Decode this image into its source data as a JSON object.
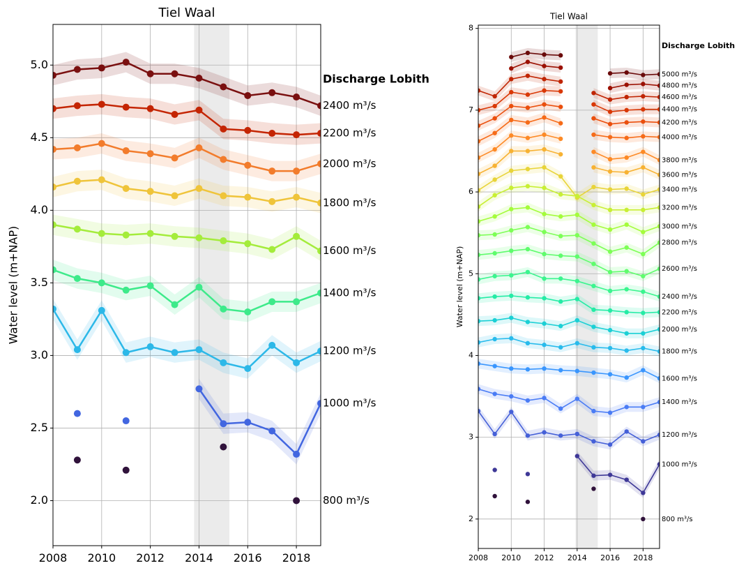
{
  "chart_data": [
    {
      "type": "line",
      "title": "Tiel Waal",
      "ylabel": "Water level (m+NAP)",
      "legend_title": "Discharge Lobith",
      "xlim": [
        2008,
        2019
      ],
      "ylim": [
        1.69,
        5.28
      ],
      "xticks": [
        2008,
        2010,
        2012,
        2014,
        2016,
        2018
      ],
      "yticks": [
        {
          "value": 2,
          "label": "2.0"
        },
        {
          "value": 2.5,
          "label": "2.5"
        },
        {
          "value": 3,
          "label": "3.0"
        },
        {
          "value": 3.5,
          "label": "3.5"
        },
        {
          "value": 4,
          "label": "4.0"
        },
        {
          "value": 4.5,
          "label": "4.5"
        },
        {
          "value": 5,
          "label": "5.0"
        }
      ],
      "grid": true,
      "highlight_span": [
        2013.8,
        2015.25
      ],
      "band_halfwidth": 0.07,
      "x": [
        2008,
        2009,
        2010,
        2011,
        2012,
        2013,
        2014,
        2015,
        2016,
        2017,
        2018,
        2019
      ],
      "series": [
        {
          "name": "2400 m³/s",
          "color": "#7a1010",
          "values": [
            4.93,
            4.97,
            4.98,
            5.02,
            4.94,
            4.94,
            4.91,
            4.85,
            4.79,
            4.81,
            4.78,
            4.72
          ]
        },
        {
          "name": "2200 m³/s",
          "color": "#c42503",
          "values": [
            4.7,
            4.72,
            4.73,
            4.71,
            4.7,
            4.66,
            4.69,
            4.56,
            4.55,
            4.53,
            4.52,
            4.53
          ]
        },
        {
          "name": "2000 m³/s",
          "color": "#f27c2c",
          "values": [
            4.42,
            4.43,
            4.46,
            4.41,
            4.39,
            4.36,
            4.43,
            4.35,
            4.31,
            4.27,
            4.27,
            4.32
          ]
        },
        {
          "name": "1800 m³/s",
          "color": "#efc43a",
          "values": [
            4.16,
            4.2,
            4.21,
            4.15,
            4.13,
            4.1,
            4.15,
            4.1,
            4.09,
            4.06,
            4.09,
            4.05
          ]
        },
        {
          "name": "1600 m³/s",
          "color": "#a4ec3b",
          "values": [
            3.9,
            3.87,
            3.84,
            3.83,
            3.84,
            3.82,
            3.81,
            3.79,
            3.77,
            3.73,
            3.82,
            3.72
          ]
        },
        {
          "name": "1400 m³/s",
          "color": "#3dea8a",
          "values": [
            3.59,
            3.53,
            3.5,
            3.45,
            3.48,
            3.35,
            3.47,
            3.32,
            3.3,
            3.37,
            3.37,
            3.43
          ]
        },
        {
          "name": "1200 m³/s",
          "color": "#2cb8e8",
          "values": [
            3.32,
            3.04,
            3.31,
            3.02,
            3.06,
            3.02,
            3.04,
            2.95,
            2.91,
            3.07,
            2.95,
            3.03
          ]
        },
        {
          "name": "1000 m³/s",
          "color": "#4266e0",
          "values": [
            null,
            2.6,
            null,
            2.55,
            null,
            null,
            2.77,
            2.53,
            2.54,
            2.48,
            2.32,
            2.67
          ]
        },
        {
          "name": "800 m³/s",
          "color": "#30123b",
          "values": [
            null,
            2.28,
            null,
            2.21,
            null,
            null,
            null,
            2.37,
            null,
            null,
            2.0,
            null
          ]
        }
      ]
    },
    {
      "type": "line",
      "title": "Tiel Waal",
      "ylabel": "Water level (m+NAP)",
      "legend_title": "Discharge Lobith",
      "xlim": [
        2008,
        2019
      ],
      "ylim": [
        1.64,
        8.04
      ],
      "xticks": [
        2008,
        2010,
        2012,
        2014,
        2016,
        2018
      ],
      "yticks": [
        2,
        3,
        4,
        5,
        6,
        7,
        8
      ],
      "grid": true,
      "highlight_span": [
        2013.9,
        2015.25
      ],
      "band_halfwidth": 0.06,
      "x": [
        2008,
        2009,
        2010,
        2011,
        2012,
        2013,
        2014,
        2015,
        2016,
        2017,
        2018,
        2019
      ],
      "series": [
        {
          "name": "5000 m³/s",
          "color": "#6a0a0a",
          "values": [
            null,
            null,
            7.65,
            7.7,
            7.68,
            7.67,
            null,
            null,
            7.45,
            7.46,
            7.43,
            7.44
          ]
        },
        {
          "name": "4800 m³/s",
          "color": "#9b1002",
          "values": [
            null,
            null,
            7.51,
            7.59,
            7.54,
            7.52,
            null,
            null,
            7.27,
            7.31,
            7.32,
            7.3
          ]
        },
        {
          "name": "4600 m³/s",
          "color": "#c02503",
          "values": [
            7.24,
            7.17,
            7.38,
            7.42,
            7.38,
            7.35,
            null,
            7.21,
            7.13,
            7.16,
            7.17,
            7.16
          ]
        },
        {
          "name": "4400 m³/s",
          "color": "#d93806",
          "values": [
            7.0,
            7.05,
            7.22,
            7.19,
            7.24,
            7.23,
            null,
            7.07,
            6.98,
            7.0,
            7.01,
            7.01
          ]
        },
        {
          "name": "4200 m³/s",
          "color": "#ea4f0d",
          "values": [
            6.81,
            6.9,
            7.05,
            7.03,
            7.07,
            7.04,
            null,
            6.9,
            6.83,
            6.85,
            6.86,
            6.85
          ]
        },
        {
          "name": "4000 m³/s",
          "color": "#f66b18",
          "values": [
            6.62,
            6.72,
            6.88,
            6.85,
            6.91,
            6.84,
            null,
            6.7,
            6.67,
            6.66,
            6.68,
            6.67
          ]
        },
        {
          "name": "3800 m³/s",
          "color": "#fd8a26",
          "values": [
            6.42,
            6.52,
            6.69,
            6.66,
            6.7,
            6.65,
            null,
            6.49,
            6.4,
            6.42,
            6.49,
            6.39
          ]
        },
        {
          "name": "3600 m³/s",
          "color": "#f7b233",
          "values": [
            6.22,
            6.32,
            6.5,
            6.5,
            6.52,
            6.46,
            null,
            6.3,
            6.25,
            6.24,
            6.3,
            6.21
          ]
        },
        {
          "name": "3400 m³/s",
          "color": "#e8d439",
          "values": [
            6.02,
            6.15,
            6.26,
            6.28,
            6.3,
            6.19,
            5.93,
            6.06,
            6.03,
            6.04,
            5.97,
            6.03
          ]
        },
        {
          "name": "3200 m³/s",
          "color": "#c8ef34",
          "values": [
            5.82,
            5.96,
            6.05,
            6.07,
            6.05,
            5.97,
            5.95,
            5.84,
            5.78,
            5.78,
            5.78,
            5.81
          ]
        },
        {
          "name": "3000 m³/s",
          "color": "#a4fc3b",
          "values": [
            5.64,
            5.7,
            5.79,
            5.81,
            5.73,
            5.7,
            5.72,
            5.6,
            5.54,
            5.6,
            5.51,
            5.58
          ]
        },
        {
          "name": "2800 m³/s",
          "color": "#7dff56",
          "values": [
            5.47,
            5.48,
            5.53,
            5.57,
            5.51,
            5.46,
            5.47,
            5.37,
            5.27,
            5.32,
            5.24,
            5.38
          ]
        },
        {
          "name": "2600 m³/s",
          "color": "#5ffc6d",
          "values": [
            5.23,
            5.25,
            5.28,
            5.3,
            5.24,
            5.22,
            5.21,
            5.12,
            5.02,
            5.03,
            4.97,
            5.06
          ]
        },
        {
          "name": "2400 m³/s",
          "color": "#3bf58f",
          "values": [
            4.93,
            4.97,
            4.98,
            5.02,
            4.94,
            4.94,
            4.91,
            4.85,
            4.79,
            4.81,
            4.78,
            4.72
          ]
        },
        {
          "name": "2200 m³/s",
          "color": "#24eca6",
          "values": [
            4.7,
            4.72,
            4.73,
            4.71,
            4.7,
            4.66,
            4.69,
            4.56,
            4.55,
            4.53,
            4.52,
            4.53
          ]
        },
        {
          "name": "2000 m³/s",
          "color": "#1bd0d5",
          "values": [
            4.42,
            4.43,
            4.46,
            4.41,
            4.39,
            4.36,
            4.43,
            4.35,
            4.31,
            4.27,
            4.27,
            4.32
          ]
        },
        {
          "name": "1800 m³/s",
          "color": "#28bbec",
          "values": [
            4.16,
            4.2,
            4.21,
            4.15,
            4.13,
            4.1,
            4.15,
            4.1,
            4.09,
            4.06,
            4.09,
            4.05
          ]
        },
        {
          "name": "1600 m³/s",
          "color": "#3a96fe",
          "values": [
            3.9,
            3.87,
            3.84,
            3.83,
            3.84,
            3.82,
            3.81,
            3.79,
            3.77,
            3.73,
            3.82,
            3.72
          ]
        },
        {
          "name": "1400 m³/s",
          "color": "#4a7cf5",
          "values": [
            3.59,
            3.53,
            3.5,
            3.45,
            3.48,
            3.35,
            3.47,
            3.32,
            3.3,
            3.37,
            3.37,
            3.43
          ]
        },
        {
          "name": "1200 m³/s",
          "color": "#4560d8",
          "values": [
            3.32,
            3.04,
            3.31,
            3.02,
            3.06,
            3.02,
            3.04,
            2.95,
            2.91,
            3.07,
            2.95,
            3.03
          ]
        },
        {
          "name": "1000 m³/s",
          "color": "#3e3897",
          "values": [
            null,
            2.6,
            null,
            2.55,
            null,
            null,
            2.77,
            2.53,
            2.54,
            2.48,
            2.32,
            2.67
          ]
        },
        {
          "name": "800 m³/s",
          "color": "#30123b",
          "values": [
            null,
            2.28,
            null,
            2.21,
            null,
            null,
            null,
            2.37,
            null,
            null,
            2.0,
            null
          ]
        }
      ]
    }
  ]
}
